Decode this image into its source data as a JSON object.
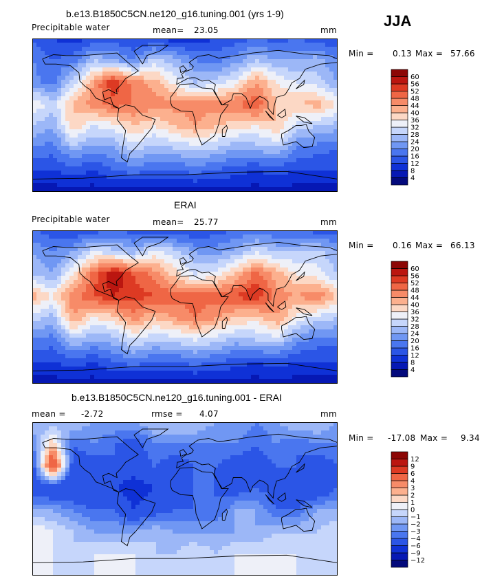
{
  "season": "JJA",
  "chart_data": [
    {
      "type": "heatmap",
      "title": "b.e13.B1850C5CN.ne120_g16.tuning.001 (yrs 1-9)",
      "left_label": "Precipitable water",
      "mean_label": "mean=",
      "mean": "23.05",
      "units": "mm",
      "min_label": "Min =",
      "min": "0.13",
      "max_label": "Max =",
      "max": "57.66",
      "colorbar_levels": [
        4,
        8,
        12,
        16,
        20,
        24,
        28,
        32,
        36,
        40,
        44,
        48,
        52,
        56,
        60
      ],
      "colorbar_colors": [
        "#030a7c",
        "#0618b4",
        "#0f31d6",
        "#2b55e6",
        "#4a76ef",
        "#7097f3",
        "#9cb7f7",
        "#c6d6fb",
        "#eef0f8",
        "#fcd8c5",
        "#fcb08e",
        "#f78b68",
        "#ef6645",
        "#dd3a23",
        "#bb1610",
        "#8c0605"
      ],
      "field_grid_rows": [
        [
          16,
          12,
          10,
          12,
          14,
          12,
          12,
          10,
          10,
          12,
          14,
          16,
          14,
          16,
          14,
          12
        ],
        [
          20,
          16,
          18,
          28,
          24,
          20,
          30,
          26,
          20,
          18,
          22,
          28,
          24,
          24,
          26,
          20
        ],
        [
          22,
          18,
          30,
          44,
          56,
          46,
          42,
          34,
          28,
          30,
          34,
          44,
          36,
          32,
          30,
          24
        ],
        [
          36,
          30,
          40,
          46,
          50,
          48,
          46,
          46,
          46,
          46,
          48,
          52,
          40,
          40,
          42,
          36
        ],
        [
          28,
          24,
          40,
          32,
          34,
          40,
          36,
          40,
          44,
          40,
          38,
          36,
          40,
          30,
          28,
          26
        ],
        [
          20,
          18,
          26,
          22,
          24,
          30,
          26,
          28,
          30,
          28,
          24,
          26,
          28,
          20,
          18,
          16
        ],
        [
          12,
          12,
          14,
          12,
          16,
          18,
          16,
          16,
          18,
          16,
          14,
          12,
          14,
          12,
          12,
          12
        ],
        [
          6,
          6,
          6,
          6,
          6,
          6,
          6,
          6,
          6,
          6,
          6,
          6,
          6,
          6,
          6,
          6
        ]
      ]
    },
    {
      "type": "heatmap",
      "title": "ERAI",
      "left_label": "Precipitable water",
      "mean_label": "mean=",
      "mean": "25.77",
      "units": "mm",
      "min_label": "Min =",
      "min": "0.16",
      "max_label": "Max =",
      "max": "66.13",
      "colorbar_levels": [
        4,
        8,
        12,
        16,
        20,
        24,
        28,
        32,
        36,
        40,
        44,
        48,
        52,
        56,
        60
      ],
      "colorbar_colors": [
        "#030a7c",
        "#0618b4",
        "#0f31d6",
        "#2b55e6",
        "#4a76ef",
        "#7097f3",
        "#9cb7f7",
        "#c6d6fb",
        "#eef0f8",
        "#fcd8c5",
        "#fcb08e",
        "#f78b68",
        "#ef6645",
        "#dd3a23",
        "#bb1610",
        "#8c0605"
      ],
      "field_grid_rows": [
        [
          16,
          14,
          12,
          14,
          16,
          14,
          14,
          12,
          12,
          14,
          16,
          18,
          16,
          16,
          14,
          14
        ],
        [
          24,
          20,
          24,
          32,
          30,
          26,
          34,
          30,
          24,
          22,
          26,
          32,
          28,
          28,
          30,
          24
        ],
        [
          28,
          24,
          36,
          50,
          60,
          52,
          46,
          38,
          32,
          34,
          40,
          50,
          42,
          36,
          34,
          28
        ],
        [
          42,
          36,
          46,
          52,
          56,
          54,
          52,
          50,
          50,
          50,
          52,
          56,
          46,
          44,
          48,
          40
        ],
        [
          30,
          26,
          44,
          36,
          38,
          46,
          40,
          44,
          48,
          44,
          40,
          38,
          44,
          34,
          30,
          28
        ],
        [
          20,
          18,
          28,
          24,
          26,
          32,
          28,
          30,
          32,
          30,
          26,
          28,
          30,
          22,
          18,
          18
        ],
        [
          12,
          12,
          14,
          12,
          16,
          18,
          16,
          16,
          18,
          16,
          14,
          12,
          14,
          12,
          12,
          12
        ],
        [
          6,
          6,
          6,
          6,
          6,
          6,
          6,
          6,
          6,
          6,
          6,
          6,
          6,
          6,
          6,
          6
        ]
      ]
    },
    {
      "type": "heatmap",
      "title": "b.e13.B1850C5CN.ne120_g16.tuning.001 - ERAI",
      "mean_label": "mean =",
      "mean": "-2.72",
      "rmse_label": "rmse =",
      "rmse": "4.07",
      "units": "mm",
      "min_label": "Min =",
      "min": "-17.08",
      "max_label": "Max =",
      "max": "9.34",
      "colorbar_levels": [
        -12,
        -9,
        -6,
        -4,
        -3,
        -2,
        -1,
        0,
        1,
        2,
        3,
        4,
        6,
        9,
        12
      ],
      "colorbar_level_labels": [
        "−12",
        "−9",
        "−6",
        "−4",
        "−3",
        "−2",
        "−1",
        "0",
        "1",
        "2",
        "3",
        "4",
        "6",
        "9",
        "12"
      ],
      "colorbar_colors": [
        "#030a7c",
        "#0618b4",
        "#0f31d6",
        "#2b55e6",
        "#4a76ef",
        "#7097f3",
        "#9cb7f7",
        "#c6d6fb",
        "#eef0f8",
        "#fcd8c5",
        "#fcb08e",
        "#f78b68",
        "#ef6645",
        "#dd3a23",
        "#bb1610",
        "#8c0605"
      ],
      "field_grid_rows": [
        [
          -1,
          -2,
          -1,
          -2,
          -2,
          -2,
          -1,
          -1,
          -1,
          -2,
          -2,
          -3,
          -2,
          -1,
          -1,
          -2
        ],
        [
          -3,
          2,
          -4,
          -3,
          -4,
          -5,
          -3,
          -3,
          -3,
          -3,
          -3,
          -4,
          -3,
          -4,
          -3,
          -3
        ],
        [
          -5,
          7,
          -5,
          -5,
          -4,
          -5,
          -4,
          -5,
          -4,
          -4,
          -5,
          -5,
          -4,
          -4,
          -5,
          -4
        ],
        [
          -5,
          -6,
          -6,
          -6,
          -6,
          -7,
          -6,
          -5,
          -4,
          -4,
          -5,
          -4,
          -5,
          -5,
          -6,
          -4
        ],
        [
          -2,
          -2,
          -3,
          -4,
          -4,
          -6,
          -5,
          -4,
          -4,
          -4,
          -2,
          -2,
          -4,
          -4,
          -2,
          -2
        ],
        [
          1,
          0,
          -1,
          -2,
          -2,
          -2,
          -1,
          -2,
          -2,
          -2,
          -2,
          -2,
          -1,
          -1,
          -1,
          0
        ],
        [
          0,
          0,
          -1,
          0,
          0,
          0,
          -1,
          -1,
          0,
          -1,
          0,
          0,
          0,
          0,
          -1,
          0
        ],
        [
          0,
          0,
          0,
          0,
          0,
          0,
          0,
          0,
          0,
          0,
          0,
          0,
          0,
          0,
          0,
          0
        ]
      ]
    }
  ]
}
